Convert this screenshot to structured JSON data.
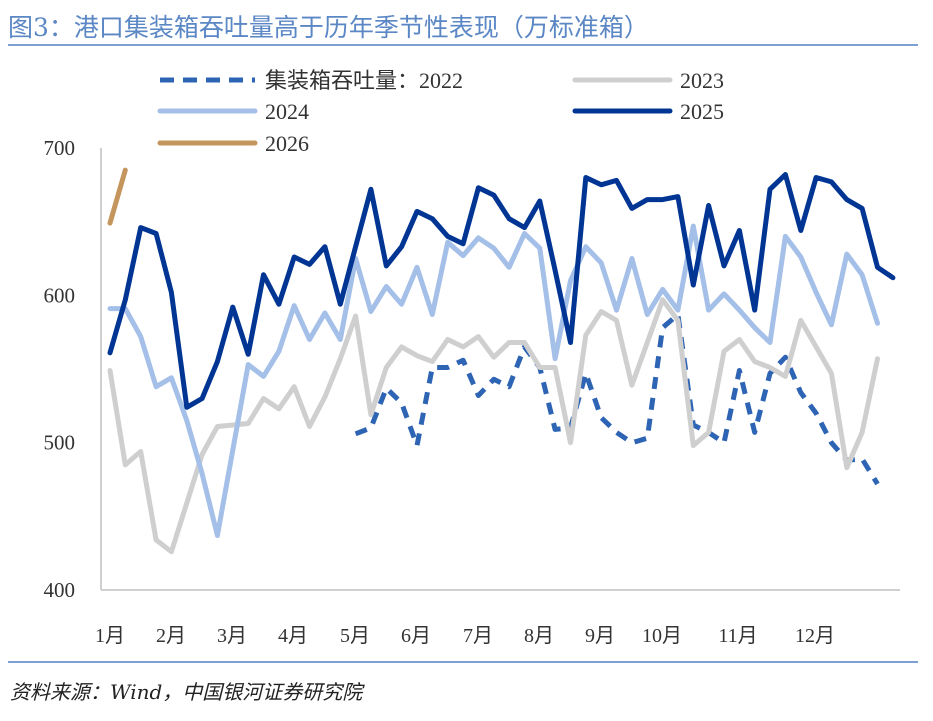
{
  "title": "图3：港口集装箱吞吐量高于历年季节性表现（万标准箱）",
  "source": "资料来源：Wind，中国银河证券研究院",
  "chart_data": {
    "type": "line",
    "title": "图3：港口集装箱吞吐量高于历年季节性表现（万标准箱）",
    "xlabel": "",
    "ylabel": "",
    "ylim": [
      400,
      700
    ],
    "yticks": [
      "400",
      "500",
      "600",
      "700"
    ],
    "xticks": [
      "1月",
      "2月",
      "3月",
      "4月",
      "5月",
      "6月",
      "7月",
      "8月",
      "9月",
      "10月",
      "11月",
      "12月"
    ],
    "grid": false,
    "legend_position": "top",
    "series": [
      {
        "name": "集装箱吞吐量：2022",
        "color": "#2E64B4",
        "dashed": true,
        "values": [
          null,
          null,
          null,
          null,
          null,
          null,
          null,
          null,
          null,
          null,
          null,
          null,
          null,
          null,
          null,
          null,
          506,
          510,
          537,
          527,
          498,
          551,
          551,
          556,
          532,
          543,
          538,
          565,
          551,
          509,
          510,
          547,
          517,
          507,
          500,
          503,
          578,
          587,
          512,
          507,
          500,
          549,
          507,
          547,
          558,
          534,
          520,
          500,
          488,
          489,
          472,
          null
        ]
      },
      {
        "name": "2023",
        "color": "#D0CFCF",
        "dashed": false,
        "values": [
          549,
          485,
          494,
          434,
          426,
          459,
          492,
          511,
          512,
          513,
          530,
          523,
          538,
          511,
          531,
          557,
          586,
          519,
          551,
          565,
          559,
          555,
          570,
          565,
          572,
          558,
          568,
          568,
          551,
          551,
          500,
          573,
          589,
          583,
          539,
          568,
          597,
          583,
          498,
          507,
          562,
          570,
          555,
          551,
          545,
          583,
          565,
          547,
          483,
          507,
          557,
          null
        ]
      },
      {
        "name": "2024",
        "color": "#A4BFE8",
        "dashed": false,
        "values": [
          591,
          591,
          572,
          538,
          544,
          515,
          479,
          437,
          495,
          553,
          545,
          562,
          593,
          570,
          588,
          570,
          625,
          589,
          606,
          594,
          619,
          587,
          636,
          627,
          639,
          632,
          619,
          642,
          632,
          557,
          610,
          633,
          622,
          590,
          625,
          587,
          604,
          590,
          647,
          590,
          601,
          590,
          578,
          568,
          640,
          626,
          602,
          580,
          628,
          614,
          581,
          null
        ]
      },
      {
        "name": "2025",
        "color": "#003594",
        "dashed": false,
        "values": [
          561,
          597,
          646,
          642,
          602,
          524,
          530,
          555,
          592,
          560,
          614,
          594,
          626,
          621,
          633,
          594,
          633,
          672,
          620,
          633,
          657,
          652,
          640,
          635,
          673,
          668,
          652,
          646,
          664,
          617,
          568,
          680,
          675,
          678,
          659,
          665,
          665,
          667,
          607,
          661,
          620,
          644,
          590,
          672,
          682,
          644,
          680,
          677,
          665,
          659,
          619,
          612
        ]
      },
      {
        "name": "2026",
        "color": "#C4965E",
        "dashed": false,
        "values": [
          649,
          685
        ]
      }
    ]
  }
}
